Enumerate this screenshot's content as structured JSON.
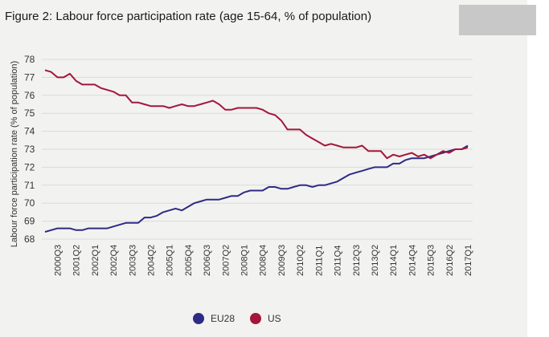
{
  "figure_title": "Figure 2: Labour force participation rate (age 15-64, % of population)",
  "colors": {
    "eu28": "#2e2b85",
    "us": "#a3173a",
    "panel": "#f2f2f1",
    "grid": "#d9d9d9"
  },
  "chart_data": {
    "type": "line",
    "title": "Figure 2: Labour force participation rate (age 15-64, % of population)",
    "xlabel": "",
    "ylabel": "Labour force participation rate (% of population)",
    "ylim": [
      68,
      78
    ],
    "yticks": [
      68,
      69,
      70,
      71,
      72,
      73,
      74,
      75,
      76,
      77,
      78
    ],
    "grid": true,
    "legend_position": "bottom",
    "x": [
      "2000Q1",
      "2000Q2",
      "2000Q3",
      "2000Q4",
      "2001Q1",
      "2001Q2",
      "2001Q3",
      "2001Q4",
      "2002Q1",
      "2002Q2",
      "2002Q3",
      "2002Q4",
      "2003Q1",
      "2003Q2",
      "2003Q3",
      "2003Q4",
      "2004Q1",
      "2004Q2",
      "2004Q3",
      "2004Q4",
      "2005Q1",
      "2005Q2",
      "2005Q3",
      "2005Q4",
      "2006Q1",
      "2006Q2",
      "2006Q3",
      "2006Q4",
      "2007Q1",
      "2007Q2",
      "2007Q3",
      "2007Q4",
      "2008Q1",
      "2008Q2",
      "2008Q3",
      "2008Q4",
      "2009Q1",
      "2009Q2",
      "2009Q3",
      "2009Q4",
      "2010Q1",
      "2010Q2",
      "2010Q3",
      "2010Q4",
      "2011Q1",
      "2011Q2",
      "2011Q3",
      "2011Q4",
      "2012Q1",
      "2012Q2",
      "2012Q3",
      "2012Q4",
      "2013Q1",
      "2013Q2",
      "2013Q3",
      "2013Q4",
      "2014Q1",
      "2014Q2",
      "2014Q3",
      "2014Q4",
      "2015Q1",
      "2015Q2",
      "2015Q3",
      "2015Q4",
      "2016Q1",
      "2016Q2",
      "2016Q3",
      "2016Q4",
      "2017Q1"
    ],
    "tick_labels": [
      "2000Q3",
      "2001Q2",
      "2002Q1",
      "2002Q4",
      "2003Q3",
      "2004Q2",
      "2005Q1",
      "2005Q4",
      "2006Q3",
      "2007Q2",
      "2008Q1",
      "2008Q4",
      "2009Q3",
      "2010Q2",
      "2011Q1",
      "2011Q4",
      "2012Q3",
      "2013Q2",
      "2014Q1",
      "2014Q4",
      "2015Q3",
      "2016Q2",
      "2017Q1"
    ],
    "series": [
      {
        "name": "EU28",
        "values": [
          68.4,
          68.5,
          68.6,
          68.6,
          68.6,
          68.5,
          68.5,
          68.6,
          68.6,
          68.6,
          68.6,
          68.7,
          68.8,
          68.9,
          68.9,
          68.9,
          69.2,
          69.2,
          69.3,
          69.5,
          69.6,
          69.7,
          69.6,
          69.8,
          70.0,
          70.1,
          70.2,
          70.2,
          70.2,
          70.3,
          70.4,
          70.4,
          70.6,
          70.7,
          70.7,
          70.7,
          70.9,
          70.9,
          70.8,
          70.8,
          70.9,
          71.0,
          71.0,
          70.9,
          71.0,
          71.0,
          71.1,
          71.2,
          71.4,
          71.6,
          71.7,
          71.8,
          71.9,
          72.0,
          72.0,
          72.0,
          72.2,
          72.2,
          72.4,
          72.5,
          72.5,
          72.5,
          72.6,
          72.7,
          72.8,
          72.9,
          73.0,
          73.0,
          73.2
        ]
      },
      {
        "name": "US",
        "values": [
          77.4,
          77.3,
          77.0,
          77.0,
          77.2,
          76.8,
          76.6,
          76.6,
          76.6,
          76.4,
          76.3,
          76.2,
          76.0,
          76.0,
          75.6,
          75.6,
          75.5,
          75.4,
          75.4,
          75.4,
          75.3,
          75.4,
          75.5,
          75.4,
          75.4,
          75.5,
          75.6,
          75.7,
          75.5,
          75.2,
          75.2,
          75.3,
          75.3,
          75.3,
          75.3,
          75.2,
          75.0,
          74.9,
          74.6,
          74.1,
          74.1,
          74.1,
          73.8,
          73.6,
          73.4,
          73.2,
          73.3,
          73.2,
          73.1,
          73.1,
          73.1,
          73.2,
          72.9,
          72.9,
          72.9,
          72.5,
          72.7,
          72.6,
          72.7,
          72.8,
          72.6,
          72.7,
          72.5,
          72.7,
          72.9,
          72.8,
          73.0,
          73.0,
          73.1
        ]
      }
    ]
  }
}
